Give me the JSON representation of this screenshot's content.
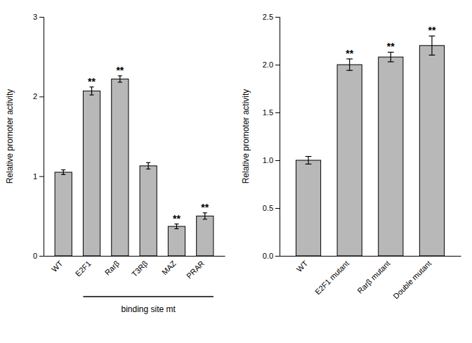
{
  "chart_data": [
    {
      "type": "bar",
      "categories": [
        "WT",
        "E2F1",
        "Rarβ",
        "T3Rβ",
        "MAZ",
        "PRAR"
      ],
      "values": [
        1.05,
        2.07,
        2.22,
        1.13,
        0.37,
        0.5
      ],
      "errors": [
        0.03,
        0.05,
        0.04,
        0.04,
        0.03,
        0.04
      ],
      "ylabel": "Relative promoter activity",
      "xlabel": "binding site mt",
      "ylim": [
        0,
        3.0
      ],
      "yticks": [
        0,
        1,
        2,
        3
      ],
      "color": "#b8b8b8",
      "annotations": [
        {
          "x": "E2F1",
          "text": "**"
        },
        {
          "x": "Rarβ",
          "text": "**"
        },
        {
          "x": "MAZ",
          "text": "**"
        },
        {
          "x": "PRAR",
          "text": "**"
        }
      ]
    },
    {
      "type": "bar",
      "categories": [
        "WT",
        "E2F1 mutant",
        "Rarβ mutant",
        "Double mutant"
      ],
      "values": [
        1.0,
        2.0,
        2.08,
        2.2
      ],
      "errors": [
        0.04,
        0.06,
        0.05,
        0.1
      ],
      "ylabel": "Relative promoter activity",
      "ylim": [
        0,
        2.5
      ],
      "yticks": [
        {
          "value": 0,
          "label": "0.0"
        },
        0.5,
        {
          "value": 1,
          "label": "1.0"
        },
        1.5,
        {
          "value": 2,
          "label": "2.0"
        },
        2.5
      ],
      "color": "#b8b8b8",
      "annotations": [
        {
          "x": "E2F1 mutant",
          "text": "**"
        },
        {
          "x": "Rarβ mutant",
          "text": "**"
        },
        {
          "x": "Double mutant",
          "text": "**"
        }
      ]
    }
  ]
}
